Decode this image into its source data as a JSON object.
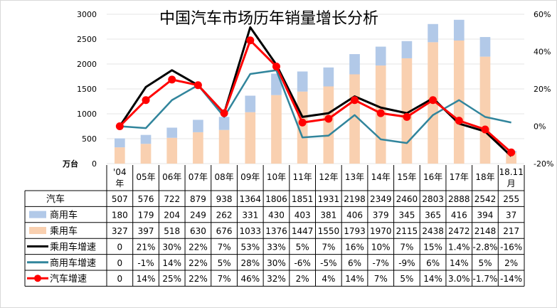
{
  "chart_data": {
    "type": "bar",
    "title": "中国汽车市场历年销量增长分析",
    "y_left": {
      "unit": "万台",
      "ylim": [
        0,
        3000
      ],
      "ticks": [
        0,
        500,
        1000,
        1500,
        2000,
        2500,
        3000
      ]
    },
    "y_right": {
      "ylim": [
        -0.2,
        0.6
      ],
      "ticks": [
        "-20%",
        "0%",
        "20%",
        "40%",
        "60%"
      ]
    },
    "categories": [
      "'04年",
      "05年",
      "06年",
      "07年",
      "08年",
      "09年",
      "10年",
      "11年",
      "12年",
      "13年",
      "14年",
      "15年",
      "16年",
      "17年",
      "18年",
      "18.11月"
    ],
    "stacked_bars": [
      {
        "name": "乘用车",
        "color": "#f9d0b0",
        "values": [
          327,
          397,
          518,
          630,
          676,
          1033,
          1376,
          1447,
          1550,
          1793,
          1970,
          2115,
          2438,
          2472,
          2148,
          217
        ]
      },
      {
        "name": "商用车",
        "color": "#b2c9e8",
        "values": [
          180,
          179,
          204,
          249,
          262,
          331,
          430,
          403,
          381,
          406,
          379,
          345,
          365,
          416,
          394,
          37
        ]
      }
    ],
    "lines": [
      {
        "name": "乘用车增速",
        "color": "#000000",
        "values": [
          0,
          0.21,
          0.3,
          0.22,
          0.07,
          0.53,
          0.33,
          0.05,
          0.07,
          0.16,
          0.1,
          0.07,
          0.15,
          0.014,
          -0.028,
          -0.16
        ],
        "labels": [
          "0",
          "21%",
          "30%",
          "22%",
          "7%",
          "53%",
          "33%",
          "5%",
          "7%",
          "16%",
          "10%",
          "7%",
          "15%",
          "1.4%",
          "-2.8%",
          "-16%"
        ]
      },
      {
        "name": "商用车增速",
        "color": "#31859c",
        "values": [
          0,
          -0.01,
          0.14,
          0.22,
          0.05,
          0.28,
          0.3,
          -0.06,
          -0.05,
          0.06,
          -0.07,
          -0.09,
          0.06,
          0.14,
          0.05,
          0.02
        ],
        "labels": [
          "0",
          "-1%",
          "14%",
          "22%",
          "5%",
          "28%",
          "30%",
          "-6%",
          "-5%",
          "6%",
          "-7%",
          "-9%",
          "6%",
          "14%",
          "5%",
          "2%"
        ]
      },
      {
        "name": "汽车增速",
        "color": "#ff0000",
        "values": [
          0,
          0.14,
          0.25,
          0.22,
          0.07,
          0.46,
          0.32,
          0.02,
          0.04,
          0.14,
          0.07,
          0.05,
          0.14,
          0.03,
          -0.017,
          -0.14
        ],
        "labels": [
          "0",
          "14%",
          "25%",
          "22%",
          "7%",
          "46%",
          "32%",
          "2%",
          "4%",
          "14%",
          "7%",
          "5%",
          "14%",
          "3.0%",
          "-1.7%",
          "-14%"
        ]
      }
    ],
    "table_rows": [
      {
        "name": "汽车",
        "legend": "none",
        "values": [
          "507",
          "576",
          "722",
          "879",
          "938",
          "1364",
          "1806",
          "1851",
          "1931",
          "2198",
          "2349",
          "2460",
          "2803",
          "2888",
          "2542",
          "255"
        ]
      },
      {
        "name": "商用车",
        "legend": "bar",
        "color": "#b2c9e8",
        "values": [
          "180",
          "179",
          "204",
          "249",
          "262",
          "331",
          "430",
          "403",
          "381",
          "406",
          "379",
          "345",
          "365",
          "416",
          "394",
          "37"
        ]
      },
      {
        "name": "乘用车",
        "legend": "bar",
        "color": "#f9d0b0",
        "values": [
          "327",
          "397",
          "518",
          "630",
          "676",
          "1033",
          "1376",
          "1447",
          "1550",
          "1793",
          "1970",
          "2115",
          "2438",
          "2472",
          "2148",
          "217"
        ]
      },
      {
        "name": "乘用车增速",
        "legend": "line",
        "color": "#000000",
        "values": [
          "0",
          "21%",
          "30%",
          "22%",
          "7%",
          "53%",
          "33%",
          "5%",
          "7%",
          "16%",
          "10%",
          "7%",
          "15%",
          "1.4%",
          "-2.8%",
          "-16%"
        ]
      },
      {
        "name": "商用车增速",
        "legend": "line",
        "color": "#31859c",
        "values": [
          "0",
          "-1%",
          "14%",
          "22%",
          "5%",
          "28%",
          "30%",
          "-6%",
          "-5%",
          "6%",
          "-7%",
          "-9%",
          "6%",
          "14%",
          "5%",
          "2%"
        ]
      },
      {
        "name": "汽车增速",
        "legend": "line-marker",
        "color": "#ff0000",
        "values": [
          "0",
          "14%",
          "25%",
          "22%",
          "7%",
          "46%",
          "32%",
          "2%",
          "4%",
          "14%",
          "7%",
          "5%",
          "14%",
          "3.0%",
          "-1.7%",
          "-14%"
        ]
      }
    ]
  }
}
